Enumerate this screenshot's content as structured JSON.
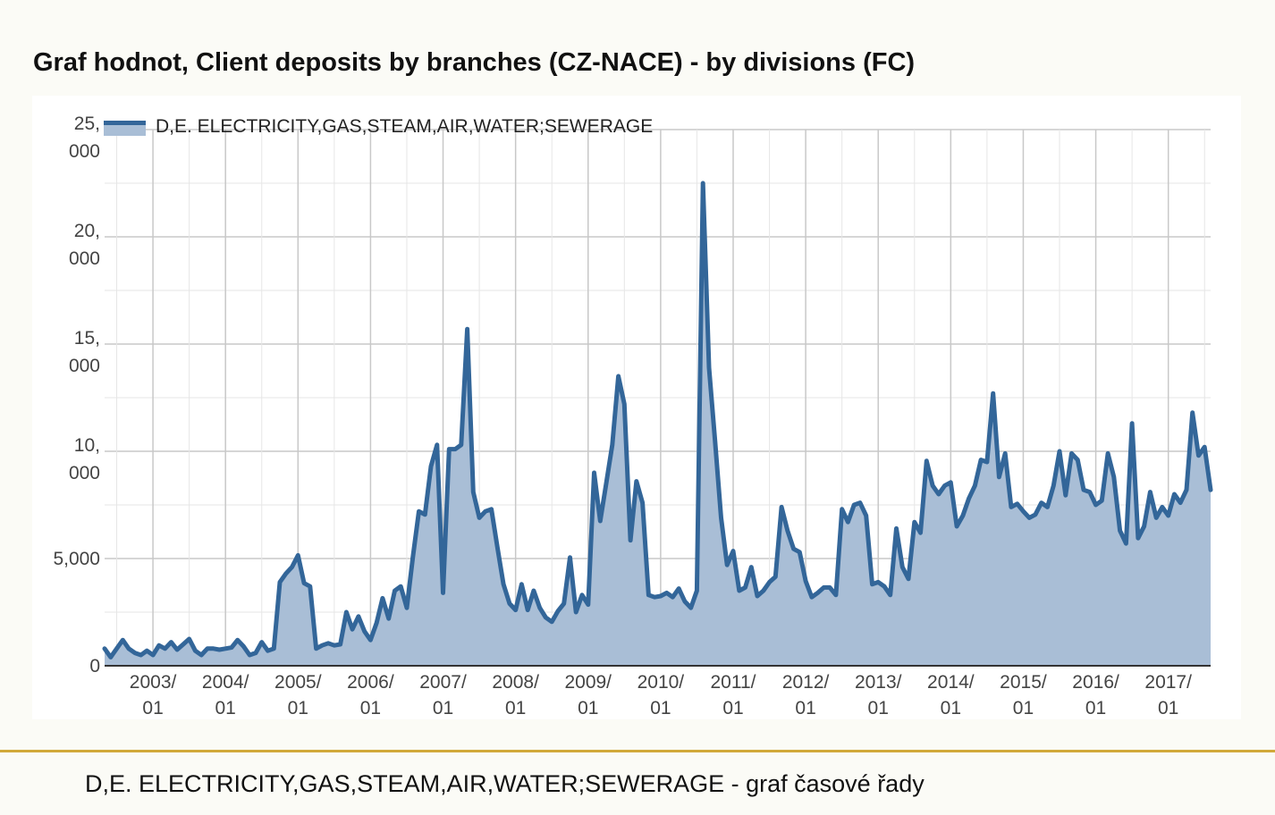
{
  "page": {
    "title": "Graf hodnot, Client deposits by branches (CZ-NACE) - by divisions (FC)",
    "caption": "D,E. ELECTRICITY,GAS,STEAM,AIR,WATER;SEWERAGE - graf časové řady"
  },
  "colors": {
    "line": "#336699",
    "area": "#a9bed6",
    "grid": "#cccccc",
    "divider": "#d1a93a"
  },
  "chart_data": {
    "type": "area",
    "title": "Graf hodnot, Client deposits by branches (CZ-NACE) - by divisions (FC)",
    "xlabel": "",
    "ylabel": "",
    "ylim": [
      0,
      25000
    ],
    "legend": "top-left",
    "grid": true,
    "y_ticks": [
      {
        "value": 0,
        "label": [
          "0"
        ]
      },
      {
        "value": 5000,
        "label": [
          "5,000"
        ]
      },
      {
        "value": 10000,
        "label": [
          "10,",
          "000"
        ]
      },
      {
        "value": 15000,
        "label": [
          "15,",
          "000"
        ]
      },
      {
        "value": 20000,
        "label": [
          "20,",
          "000"
        ]
      },
      {
        "value": 25000,
        "label": [
          "25,",
          "000"
        ]
      }
    ],
    "x_ticks": [
      {
        "date": "2003-01",
        "label": [
          "2003/",
          "01"
        ]
      },
      {
        "date": "2004-01",
        "label": [
          "2004/",
          "01"
        ]
      },
      {
        "date": "2005-01",
        "label": [
          "2005/",
          "01"
        ]
      },
      {
        "date": "2006-01",
        "label": [
          "2006/",
          "01"
        ]
      },
      {
        "date": "2007-01",
        "label": [
          "2007/",
          "01"
        ]
      },
      {
        "date": "2008-01",
        "label": [
          "2008/",
          "01"
        ]
      },
      {
        "date": "2009-01",
        "label": [
          "2009/",
          "01"
        ]
      },
      {
        "date": "2010-01",
        "label": [
          "2010/",
          "01"
        ]
      },
      {
        "date": "2011-01",
        "label": [
          "2011/",
          "01"
        ]
      },
      {
        "date": "2012-01",
        "label": [
          "2012/",
          "01"
        ]
      },
      {
        "date": "2013-01",
        "label": [
          "2013/",
          "01"
        ]
      },
      {
        "date": "2014-01",
        "label": [
          "2014/",
          "01"
        ]
      },
      {
        "date": "2015-01",
        "label": [
          "2015/",
          "01"
        ]
      },
      {
        "date": "2016-01",
        "label": [
          "2016/",
          "01"
        ]
      },
      {
        "date": "2017-01",
        "label": [
          "2017/",
          "01"
        ]
      }
    ],
    "series": [
      {
        "name": "D,E. ELECTRICITY,GAS,STEAM,AIR,WATER;SEWERAGE",
        "points": [
          [
            "2002-05",
            800
          ],
          [
            "2002-06",
            400
          ],
          [
            "2002-07",
            800
          ],
          [
            "2002-08",
            1200
          ],
          [
            "2002-09",
            800
          ],
          [
            "2002-10",
            600
          ],
          [
            "2002-11",
            500
          ],
          [
            "2002-12",
            700
          ],
          [
            "2003-01",
            500
          ],
          [
            "2003-02",
            950
          ],
          [
            "2003-03",
            800
          ],
          [
            "2003-04",
            1100
          ],
          [
            "2003-05",
            750
          ],
          [
            "2003-06",
            1000
          ],
          [
            "2003-07",
            1250
          ],
          [
            "2003-08",
            700
          ],
          [
            "2003-09",
            500
          ],
          [
            "2003-10",
            800
          ],
          [
            "2003-11",
            800
          ],
          [
            "2003-12",
            750
          ],
          [
            "2004-01",
            800
          ],
          [
            "2004-02",
            850
          ],
          [
            "2004-03",
            1200
          ],
          [
            "2004-04",
            900
          ],
          [
            "2004-05",
            500
          ],
          [
            "2004-06",
            600
          ],
          [
            "2004-07",
            1100
          ],
          [
            "2004-08",
            700
          ],
          [
            "2004-09",
            800
          ],
          [
            "2004-10",
            3900
          ],
          [
            "2004-11",
            4300
          ],
          [
            "2004-12",
            4600
          ],
          [
            "2005-01",
            5150
          ],
          [
            "2005-02",
            3850
          ],
          [
            "2005-03",
            3700
          ],
          [
            "2005-04",
            800
          ],
          [
            "2005-05",
            950
          ],
          [
            "2005-06",
            1050
          ],
          [
            "2005-07",
            950
          ],
          [
            "2005-08",
            1000
          ],
          [
            "2005-09",
            2500
          ],
          [
            "2005-10",
            1700
          ],
          [
            "2005-11",
            2300
          ],
          [
            "2005-12",
            1600
          ],
          [
            "2006-01",
            1200
          ],
          [
            "2006-02",
            2000
          ],
          [
            "2006-03",
            3150
          ],
          [
            "2006-04",
            2200
          ],
          [
            "2006-05",
            3500
          ],
          [
            "2006-06",
            3700
          ],
          [
            "2006-07",
            2700
          ],
          [
            "2006-08",
            5050
          ],
          [
            "2006-09",
            7200
          ],
          [
            "2006-10",
            7050
          ],
          [
            "2006-11",
            9300
          ],
          [
            "2006-12",
            10300
          ],
          [
            "2007-01",
            3400
          ],
          [
            "2007-02",
            10100
          ],
          [
            "2007-03",
            10100
          ],
          [
            "2007-04",
            10300
          ],
          [
            "2007-05",
            15700
          ],
          [
            "2007-06",
            8100
          ],
          [
            "2007-07",
            6900
          ],
          [
            "2007-08",
            7200
          ],
          [
            "2007-09",
            7300
          ],
          [
            "2007-10",
            5500
          ],
          [
            "2007-11",
            3800
          ],
          [
            "2007-12",
            2900
          ],
          [
            "2008-01",
            2600
          ],
          [
            "2008-02",
            3800
          ],
          [
            "2008-03",
            2600
          ],
          [
            "2008-04",
            3500
          ],
          [
            "2008-05",
            2700
          ],
          [
            "2008-06",
            2250
          ],
          [
            "2008-07",
            2050
          ],
          [
            "2008-08",
            2550
          ],
          [
            "2008-09",
            2900
          ],
          [
            "2008-10",
            5050
          ],
          [
            "2008-11",
            2500
          ],
          [
            "2008-12",
            3300
          ],
          [
            "2009-01",
            2850
          ],
          [
            "2009-02",
            9000
          ],
          [
            "2009-03",
            6750
          ],
          [
            "2009-04",
            8500
          ],
          [
            "2009-05",
            10300
          ],
          [
            "2009-06",
            13500
          ],
          [
            "2009-07",
            12200
          ],
          [
            "2009-08",
            5850
          ],
          [
            "2009-09",
            8600
          ],
          [
            "2009-10",
            7600
          ],
          [
            "2009-11",
            3300
          ],
          [
            "2009-12",
            3200
          ],
          [
            "2010-01",
            3250
          ],
          [
            "2010-02",
            3400
          ],
          [
            "2010-03",
            3200
          ],
          [
            "2010-04",
            3600
          ],
          [
            "2010-05",
            3000
          ],
          [
            "2010-06",
            2700
          ],
          [
            "2010-07",
            3500
          ],
          [
            "2010-08",
            22500
          ],
          [
            "2010-09",
            13900
          ],
          [
            "2010-10",
            10500
          ],
          [
            "2010-11",
            6900
          ],
          [
            "2010-12",
            4700
          ],
          [
            "2011-01",
            5350
          ],
          [
            "2011-02",
            3500
          ],
          [
            "2011-03",
            3650
          ],
          [
            "2011-04",
            4600
          ],
          [
            "2011-05",
            3250
          ],
          [
            "2011-06",
            3500
          ],
          [
            "2011-07",
            3900
          ],
          [
            "2011-08",
            4150
          ],
          [
            "2011-09",
            7400
          ],
          [
            "2011-10",
            6300
          ],
          [
            "2011-11",
            5450
          ],
          [
            "2011-12",
            5300
          ],
          [
            "2012-01",
            3950
          ],
          [
            "2012-02",
            3200
          ],
          [
            "2012-03",
            3400
          ],
          [
            "2012-04",
            3650
          ],
          [
            "2012-05",
            3650
          ],
          [
            "2012-06",
            3300
          ],
          [
            "2012-07",
            7300
          ],
          [
            "2012-08",
            6700
          ],
          [
            "2012-09",
            7500
          ],
          [
            "2012-10",
            7600
          ],
          [
            "2012-11",
            7000
          ],
          [
            "2012-12",
            3800
          ],
          [
            "2013-01",
            3900
          ],
          [
            "2013-02",
            3700
          ],
          [
            "2013-03",
            3300
          ],
          [
            "2013-04",
            6400
          ],
          [
            "2013-05",
            4600
          ],
          [
            "2013-06",
            4050
          ],
          [
            "2013-07",
            6700
          ],
          [
            "2013-08",
            6200
          ],
          [
            "2013-09",
            9550
          ],
          [
            "2013-10",
            8400
          ],
          [
            "2013-11",
            8000
          ],
          [
            "2013-12",
            8400
          ],
          [
            "2014-01",
            8550
          ],
          [
            "2014-02",
            6500
          ],
          [
            "2014-03",
            7000
          ],
          [
            "2014-04",
            7800
          ],
          [
            "2014-05",
            8400
          ],
          [
            "2014-06",
            9600
          ],
          [
            "2014-07",
            9500
          ],
          [
            "2014-08",
            12700
          ],
          [
            "2014-09",
            8800
          ],
          [
            "2014-10",
            9900
          ],
          [
            "2014-11",
            7400
          ],
          [
            "2014-12",
            7550
          ],
          [
            "2015-01",
            7200
          ],
          [
            "2015-02",
            6900
          ],
          [
            "2015-03",
            7050
          ],
          [
            "2015-04",
            7600
          ],
          [
            "2015-05",
            7400
          ],
          [
            "2015-06",
            8400
          ],
          [
            "2015-07",
            10000
          ],
          [
            "2015-08",
            7950
          ],
          [
            "2015-09",
            9900
          ],
          [
            "2015-10",
            9600
          ],
          [
            "2015-11",
            8200
          ],
          [
            "2015-12",
            8100
          ],
          [
            "2016-01",
            7500
          ],
          [
            "2016-02",
            7700
          ],
          [
            "2016-03",
            9900
          ],
          [
            "2016-04",
            8800
          ],
          [
            "2016-05",
            6300
          ],
          [
            "2016-06",
            5700
          ],
          [
            "2016-07",
            11300
          ],
          [
            "2016-08",
            5950
          ],
          [
            "2016-09",
            6500
          ],
          [
            "2016-10",
            8100
          ],
          [
            "2016-11",
            6900
          ],
          [
            "2016-12",
            7400
          ],
          [
            "2017-01",
            7000
          ],
          [
            "2017-02",
            8000
          ],
          [
            "2017-03",
            7600
          ],
          [
            "2017-04",
            8200
          ],
          [
            "2017-05",
            11800
          ],
          [
            "2017-06",
            9800
          ],
          [
            "2017-07",
            10200
          ],
          [
            "2017-08",
            8200
          ]
        ]
      }
    ]
  }
}
